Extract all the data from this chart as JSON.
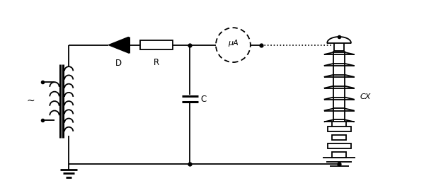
{
  "bg_color": "#ffffff",
  "line_color": "#000000",
  "line_width": 1.3,
  "fig_width": 6.16,
  "fig_height": 2.66,
  "dpi": 100,
  "label_D": "D",
  "label_R": "R",
  "label_C": "C",
  "label_uA": "μA",
  "label_Cx": "CΧ",
  "label_tilde": "~"
}
